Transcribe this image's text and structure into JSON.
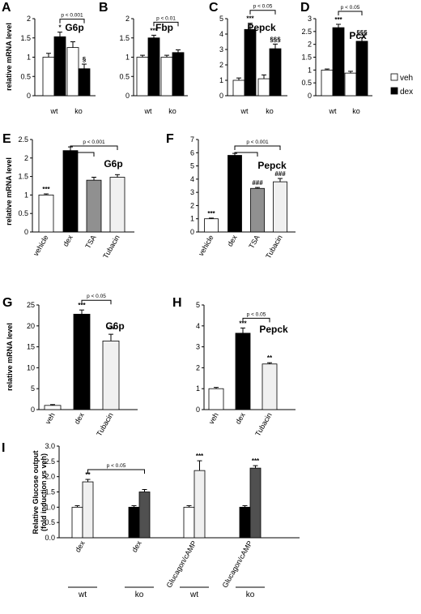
{
  "colors": {
    "white": "#ffffff",
    "black": "#000000",
    "gray": "#909090",
    "light": "#f0f0f0",
    "dark": "#505050"
  },
  "legend": {
    "items": [
      {
        "label": "veh",
        "color": "white"
      },
      {
        "label": "dex",
        "color": "black"
      }
    ]
  },
  "chart_data": [
    {
      "id": "A",
      "type": "bar",
      "letter": "A",
      "title": "G6p",
      "ylabel": "relative mRNA level",
      "ylim": [
        0,
        2
      ],
      "yticks": [
        "0",
        "0.5",
        "1",
        "1.5",
        "2"
      ],
      "categories": [
        "wt",
        "ko"
      ],
      "bars": [
        {
          "group": 0,
          "value": 1.0,
          "err": 0.1,
          "color": "white"
        },
        {
          "group": 0,
          "value": 1.53,
          "err": 0.12,
          "color": "black",
          "sig": "*"
        },
        {
          "group": 1,
          "value": 1.25,
          "err": 0.15,
          "color": "white"
        },
        {
          "group": 1,
          "value": 0.7,
          "err": 0.12,
          "color": "black",
          "sig": "§"
        }
      ],
      "brackets": [
        {
          "from": 1,
          "to": 3,
          "label": "p < 0.001"
        }
      ]
    },
    {
      "id": "B",
      "type": "bar",
      "letter": "B",
      "title": "Fbp",
      "ylabel": "",
      "ylim": [
        0,
        2
      ],
      "yticks": [
        "0",
        "0.5",
        "1",
        "1.5",
        "2"
      ],
      "categories": [
        "wt",
        "ko"
      ],
      "bars": [
        {
          "group": 0,
          "value": 1.0,
          "err": 0.05,
          "color": "white"
        },
        {
          "group": 0,
          "value": 1.5,
          "err": 0.07,
          "color": "black",
          "sig": "***"
        },
        {
          "group": 1,
          "value": 1.0,
          "err": 0.05,
          "color": "white"
        },
        {
          "group": 1,
          "value": 1.12,
          "err": 0.07,
          "color": "black"
        }
      ],
      "brackets": [
        {
          "from": 1,
          "to": 3,
          "label": "p < 0.01"
        }
      ]
    },
    {
      "id": "C",
      "type": "bar",
      "letter": "C",
      "title": "Pepck",
      "ylabel": "",
      "ylim": [
        0,
        5
      ],
      "yticks": [
        "0",
        "1",
        "2",
        "3",
        "4",
        "5"
      ],
      "categories": [
        "wt",
        "ko"
      ],
      "bars": [
        {
          "group": 0,
          "value": 1.0,
          "err": 0.15,
          "color": "white"
        },
        {
          "group": 0,
          "value": 4.3,
          "err": 0.4,
          "color": "black",
          "sig": "***"
        },
        {
          "group": 1,
          "value": 1.1,
          "err": 0.25,
          "color": "white"
        },
        {
          "group": 1,
          "value": 3.05,
          "err": 0.3,
          "color": "black",
          "sig": "§§§"
        }
      ],
      "brackets": [
        {
          "from": 1,
          "to": 3,
          "label": "p < 0.05"
        }
      ]
    },
    {
      "id": "D",
      "type": "bar",
      "letter": "D",
      "title": "Pcx",
      "ylabel": "",
      "ylim": [
        0,
        3
      ],
      "yticks": [
        "0",
        "0.5",
        "1",
        "1.5",
        "2",
        "2.5",
        "3"
      ],
      "categories": [
        "wt",
        "ko"
      ],
      "bars": [
        {
          "group": 0,
          "value": 1.0,
          "err": 0.04,
          "color": "white"
        },
        {
          "group": 0,
          "value": 2.65,
          "err": 0.13,
          "color": "black",
          "sig": "***"
        },
        {
          "group": 1,
          "value": 0.88,
          "err": 0.07,
          "color": "white"
        },
        {
          "group": 1,
          "value": 2.12,
          "err": 0.15,
          "color": "black",
          "sig": "§§§"
        }
      ],
      "brackets": [
        {
          "from": 1,
          "to": 3,
          "label": "p < 0.05"
        }
      ]
    },
    {
      "id": "E",
      "type": "bar",
      "letter": "E",
      "title": "G6p",
      "ylabel": "relative mRNA level",
      "ylim": [
        0,
        2.5
      ],
      "yticks": [
        "0",
        "0.5",
        "1",
        "1.5",
        "2",
        "2.5"
      ],
      "categories": [
        "vehicle",
        "dex",
        "TSA",
        "Tubacin"
      ],
      "bars": [
        {
          "group": 0,
          "value": 1.0,
          "err": 0.03,
          "color": "white",
          "sig": "***"
        },
        {
          "group": 1,
          "value": 2.2,
          "err": 0.1,
          "color": "black"
        },
        {
          "group": 2,
          "value": 1.4,
          "err": 0.08,
          "color": "gray"
        },
        {
          "group": 3,
          "value": 1.48,
          "err": 0.07,
          "color": "light"
        }
      ],
      "brackets": [
        {
          "from": 1,
          "to": 3,
          "label": "p < 0.001",
          "stem": [
            1,
            2
          ]
        }
      ]
    },
    {
      "id": "F",
      "type": "bar",
      "letter": "F",
      "title": "Pepck",
      "ylabel": "",
      "ylim": [
        0,
        7
      ],
      "yticks": [
        "0",
        "1",
        "2",
        "3",
        "4",
        "5",
        "6",
        "7"
      ],
      "categories": [
        "vehicle",
        "dex",
        "TSA",
        "Tubacin"
      ],
      "bars": [
        {
          "group": 0,
          "value": 1.0,
          "err": 0.05,
          "color": "white",
          "sig": "***"
        },
        {
          "group": 1,
          "value": 5.8,
          "err": 0.15,
          "color": "black"
        },
        {
          "group": 2,
          "value": 3.3,
          "err": 0.07,
          "color": "gray",
          "sig": "###"
        },
        {
          "group": 3,
          "value": 3.8,
          "err": 0.25,
          "color": "light",
          "sig": "###"
        }
      ],
      "brackets": [
        {
          "from": 1,
          "to": 3,
          "label": "p < 0.001",
          "stem": [
            1,
            2
          ]
        }
      ]
    },
    {
      "id": "G",
      "type": "bar",
      "letter": "G",
      "title": "G6p",
      "ylabel": "relative mRNA level",
      "ylim": [
        0,
        25
      ],
      "yticks": [
        "0",
        "5",
        "10",
        "15",
        "20",
        "25"
      ],
      "categories": [
        "veh",
        "dex",
        "Tubacin"
      ],
      "bars": [
        {
          "group": 0,
          "value": 1.0,
          "err": 0.2,
          "color": "white"
        },
        {
          "group": 1,
          "value": 22.8,
          "err": 1.0,
          "color": "black",
          "sig": "***"
        },
        {
          "group": 2,
          "value": 16.4,
          "err": 1.6,
          "color": "light",
          "sig": "***"
        }
      ],
      "brackets": [
        {
          "from": 1,
          "to": 2,
          "label": "p < 0.05"
        }
      ]
    },
    {
      "id": "H",
      "type": "bar",
      "letter": "H",
      "title": "Pepck",
      "ylabel": "",
      "ylim": [
        0,
        5
      ],
      "yticks": [
        "0",
        "1",
        "2",
        "3",
        "4",
        "5"
      ],
      "categories": [
        "veh",
        "dex",
        "Tubacin"
      ],
      "bars": [
        {
          "group": 0,
          "value": 1.0,
          "err": 0.06,
          "color": "white"
        },
        {
          "group": 1,
          "value": 3.65,
          "err": 0.25,
          "color": "black",
          "sig": "***"
        },
        {
          "group": 2,
          "value": 2.18,
          "err": 0.06,
          "color": "light",
          "sig": "**"
        }
      ],
      "brackets": [
        {
          "from": 1,
          "to": 2,
          "label": "p < 0.05"
        }
      ]
    },
    {
      "id": "I",
      "type": "bar",
      "letter": "I",
      "title": "",
      "ylabel": "Relative Glucose output",
      "ylabel2": "(fold induction vs veh)",
      "ylim": [
        0,
        3
      ],
      "yticks": [
        "0.0",
        "0.5",
        "1.0",
        "1.5",
        "2.0",
        "2.5",
        "3.0"
      ],
      "categories": [
        "dex",
        "dex",
        "Glucagon/cAMP",
        "Glucagon/cAMP"
      ],
      "groups": [
        "wt",
        "ko",
        "wt",
        "ko"
      ],
      "bars": [
        {
          "group": 0,
          "value": 1.0,
          "err": 0.05,
          "color": "white"
        },
        {
          "group": 0,
          "value": 1.83,
          "err": 0.08,
          "color": "light",
          "sig": "**"
        },
        {
          "group": 1,
          "value": 1.0,
          "err": 0.05,
          "color": "black"
        },
        {
          "group": 1,
          "value": 1.5,
          "err": 0.08,
          "color": "dark"
        },
        {
          "group": 2,
          "value": 1.0,
          "err": 0.05,
          "color": "white"
        },
        {
          "group": 2,
          "value": 2.2,
          "err": 0.32,
          "color": "light",
          "sig": "***"
        },
        {
          "group": 3,
          "value": 1.0,
          "err": 0.05,
          "color": "black"
        },
        {
          "group": 3,
          "value": 2.28,
          "err": 0.08,
          "color": "dark",
          "sig": "***"
        }
      ],
      "brackets": [
        {
          "from": 1,
          "to": 3,
          "label": "p < 0.05"
        }
      ]
    }
  ]
}
